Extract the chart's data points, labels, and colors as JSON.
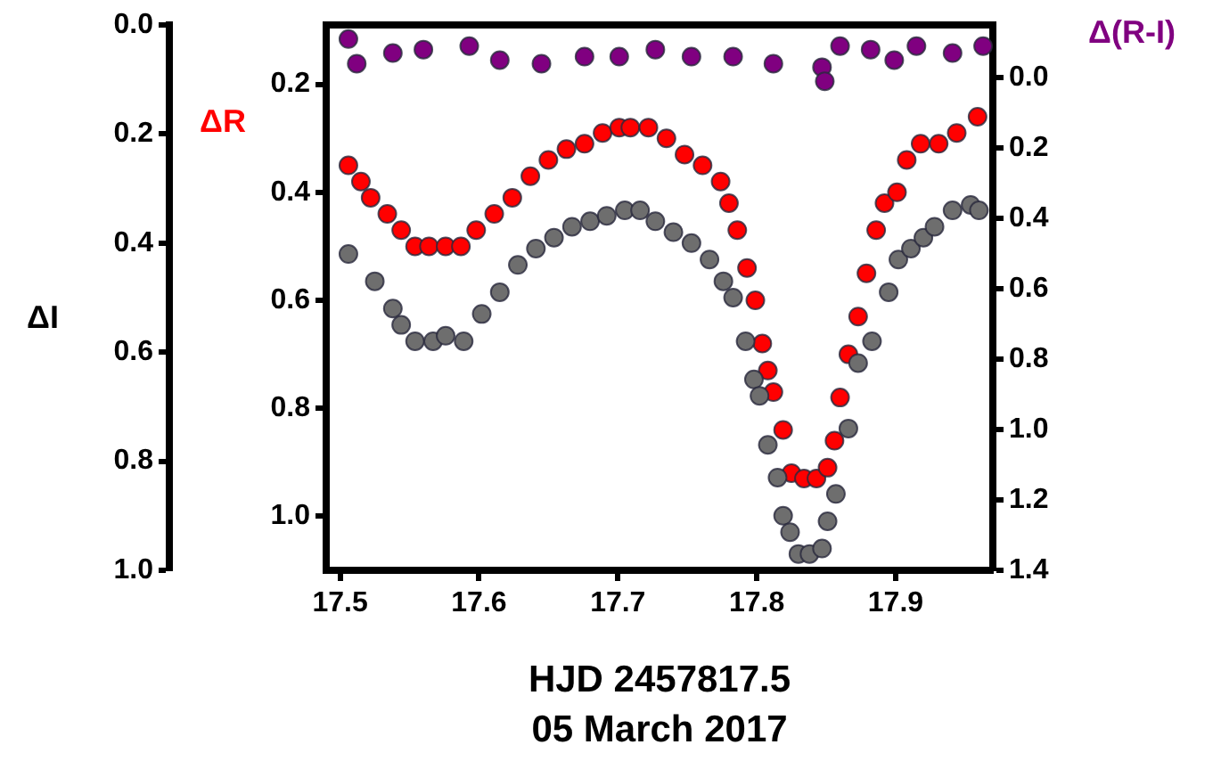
{
  "chart_data": {
    "type": "scatter",
    "xlabel": "HJD 2457817.5",
    "annotations": [
      "05 March 2017"
    ],
    "ylabel": "ΔI",
    "y2label": "Δ(R-I)",
    "y3label": "ΔR",
    "xlim": [
      17.49,
      17.97
    ],
    "xticks": [
      17.5,
      17.6,
      17.7,
      17.8,
      17.9
    ],
    "ylim": [
      1.0,
      0.0
    ],
    "yticks": [
      {
        "value": 0,
        "label": "0.0"
      },
      0.2,
      0.4,
      0.6,
      0.8,
      {
        "value": 1,
        "label": "1.0"
      }
    ],
    "y3lim": [
      1.1,
      0.09
    ],
    "y3ticks": [
      0.2,
      0.4,
      0.6,
      0.8,
      {
        "value": 1,
        "label": "1.0"
      }
    ],
    "y2lim": [
      1.4,
      -0.15
    ],
    "y2ticks": [
      {
        "value": 0,
        "label": "0.0"
      },
      0.2,
      0.4,
      0.6,
      0.8,
      {
        "value": 1,
        "label": "1.0"
      },
      1.2,
      1.4
    ],
    "grid": false,
    "legend": false,
    "marker": "circle",
    "series": [
      {
        "color": "#6e6e6e",
        "x": [
          17.506,
          17.525,
          17.538,
          17.544,
          17.554,
          17.567,
          17.576,
          17.589,
          17.602,
          17.615,
          17.628,
          17.641,
          17.654,
          17.667,
          17.68,
          17.692,
          17.705,
          17.716,
          17.727,
          17.74,
          17.753,
          17.766,
          17.776,
          17.783,
          17.792,
          17.798,
          17.802,
          17.808,
          17.815,
          17.819,
          17.824,
          17.83,
          17.838,
          17.847,
          17.851,
          17.857,
          17.866,
          17.873,
          17.883,
          17.895,
          17.902,
          17.911,
          17.92,
          17.928,
          17.941,
          17.954,
          17.96
        ],
        "values": [
          0.42,
          0.47,
          0.52,
          0.55,
          0.58,
          0.58,
          0.57,
          0.58,
          0.53,
          0.49,
          0.44,
          0.41,
          0.39,
          0.37,
          0.36,
          0.35,
          0.34,
          0.34,
          0.36,
          0.38,
          0.4,
          0.43,
          0.47,
          0.5,
          0.58,
          0.65,
          0.68,
          0.77,
          0.83,
          0.9,
          0.93,
          0.97,
          0.97,
          0.96,
          0.91,
          0.86,
          0.74,
          0.62,
          0.58,
          0.49,
          0.43,
          0.41,
          0.39,
          0.37,
          0.34,
          0.33,
          0.34
        ]
      },
      {
        "color": "#ff0000",
        "axis": "y3",
        "x": [
          17.506,
          17.515,
          17.522,
          17.534,
          17.544,
          17.554,
          17.564,
          17.576,
          17.587,
          17.598,
          17.611,
          17.624,
          17.637,
          17.65,
          17.663,
          17.676,
          17.689,
          17.701,
          17.709,
          17.722,
          17.735,
          17.748,
          17.761,
          17.774,
          17.78,
          17.786,
          17.793,
          17.799,
          17.804,
          17.808,
          17.812,
          17.819,
          17.825,
          17.834,
          17.843,
          17.851,
          17.856,
          17.86,
          17.866,
          17.873,
          17.879,
          17.886,
          17.892,
          17.901,
          17.908,
          17.918,
          17.931,
          17.944,
          17.959
        ],
        "values": [
          0.35,
          0.38,
          0.41,
          0.44,
          0.47,
          0.5,
          0.5,
          0.5,
          0.5,
          0.47,
          0.44,
          0.41,
          0.37,
          0.34,
          0.32,
          0.31,
          0.29,
          0.28,
          0.28,
          0.28,
          0.3,
          0.33,
          0.35,
          0.38,
          0.42,
          0.47,
          0.54,
          0.6,
          0.68,
          0.73,
          0.77,
          0.84,
          0.92,
          0.93,
          0.93,
          0.91,
          0.86,
          0.78,
          0.7,
          0.63,
          0.55,
          0.47,
          0.42,
          0.4,
          0.34,
          0.31,
          0.31,
          0.29,
          0.26
        ]
      },
      {
        "color": "#800080",
        "axis": "y2",
        "x": [
          17.506,
          17.512,
          17.538,
          17.56,
          17.593,
          17.615,
          17.645,
          17.676,
          17.701,
          17.727,
          17.753,
          17.783,
          17.812,
          17.847,
          17.849,
          17.86,
          17.882,
          17.899,
          17.915,
          17.941,
          17.963
        ],
        "values": [
          -0.11,
          -0.04,
          -0.07,
          -0.08,
          -0.09,
          -0.05,
          -0.04,
          -0.06,
          -0.06,
          -0.08,
          -0.06,
          -0.06,
          -0.04,
          -0.03,
          0.01,
          -0.09,
          -0.08,
          -0.05,
          -0.09,
          -0.07,
          -0.09
        ]
      }
    ]
  }
}
